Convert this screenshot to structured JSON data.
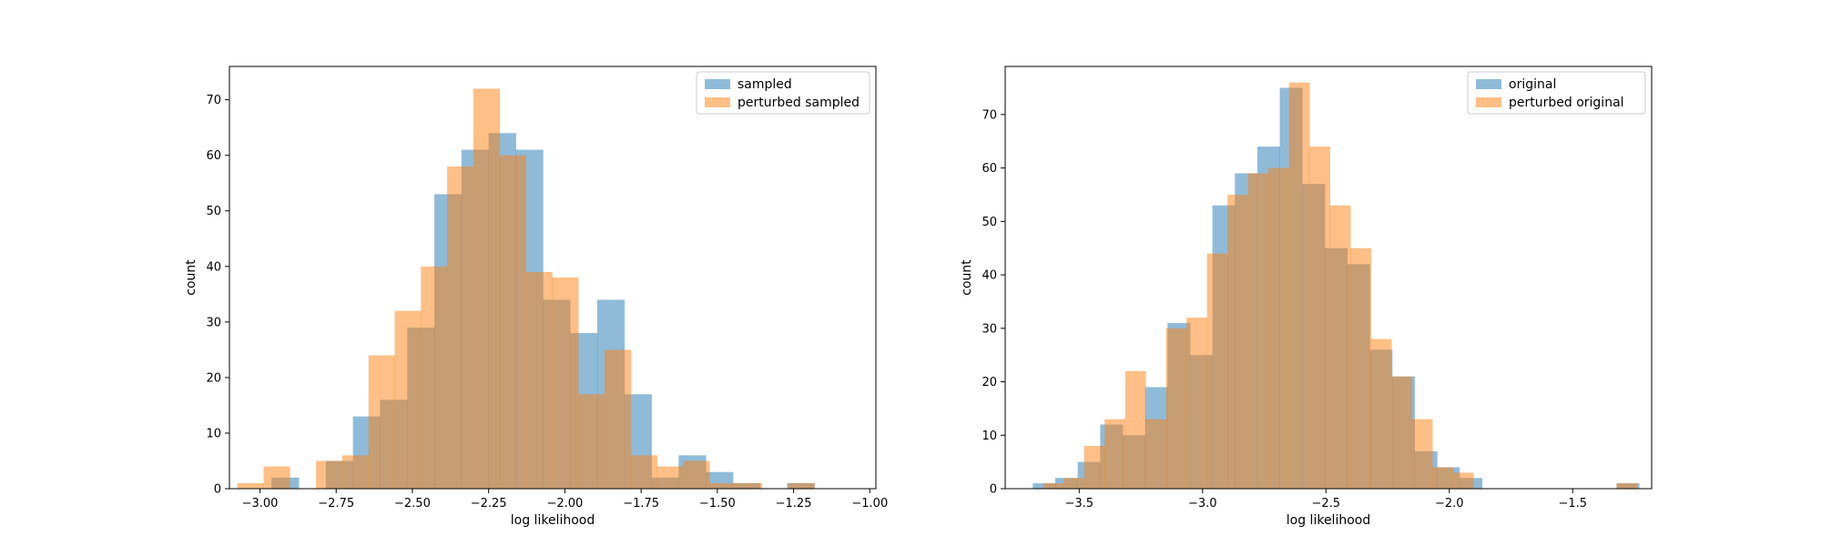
{
  "chart_data": [
    {
      "type": "bar",
      "title": "",
      "xlabel": "log likelihood",
      "ylabel": "count",
      "xlim": [
        -3.1,
        -0.98
      ],
      "ylim": [
        0,
        76
      ],
      "xticks": [
        -3.0,
        -2.75,
        -2.5,
        -2.25,
        -2.0,
        -1.75,
        -1.5,
        -1.25,
        -1.0
      ],
      "xtick_labels": [
        "−3.00",
        "−2.75",
        "−2.50",
        "−2.25",
        "−2.00",
        "−1.75",
        "−1.50",
        "−1.25",
        "−1.00"
      ],
      "yticks": [
        0,
        10,
        20,
        30,
        40,
        50,
        60,
        70
      ],
      "ytick_labels": [
        "0",
        "10",
        "20",
        "30",
        "40",
        "50",
        "60",
        "70"
      ],
      "grid": false,
      "legend_position": "upper-right",
      "series": [
        {
          "name": "sampled",
          "color": "#1f77b4",
          "edges": [
            -2.962,
            -2.873,
            -2.784,
            -2.695,
            -2.606,
            -2.517,
            -2.428,
            -2.339,
            -2.25,
            -2.161,
            -2.072,
            -1.983,
            -1.894,
            -1.805,
            -1.716,
            -1.627,
            -1.538,
            -1.449,
            -1.36,
            -1.271,
            -1.182,
            -1.093
          ],
          "counts": [
            2,
            0,
            5,
            13,
            16,
            29,
            53,
            61,
            64,
            61,
            34,
            28,
            34,
            17,
            2,
            6,
            3,
            1,
            0,
            1,
            0,
            1
          ]
        },
        {
          "name": "perturbed sampled",
          "color": "#ff7f0e",
          "edges": [
            -3.074,
            -2.988,
            -2.902,
            -2.816,
            -2.73,
            -2.644,
            -2.558,
            -2.472,
            -2.386,
            -2.3,
            -2.214,
            -2.128,
            -2.042,
            -1.956,
            -1.87,
            -1.784,
            -1.698,
            -1.612,
            -1.526,
            -1.44,
            -1.354,
            -1.268,
            -1.182
          ],
          "counts": [
            1,
            4,
            0,
            5,
            6,
            24,
            32,
            40,
            58,
            72,
            60,
            39,
            38,
            17,
            25,
            6,
            4,
            5,
            1,
            1,
            0,
            1
          ]
        }
      ]
    },
    {
      "type": "bar",
      "title": "",
      "xlabel": "log likelihood",
      "ylabel": "count",
      "xlim": [
        -3.8,
        -1.18
      ],
      "ylim": [
        0,
        79
      ],
      "xticks": [
        -3.5,
        -3.0,
        -2.5,
        -2.0,
        -1.5
      ],
      "xtick_labels": [
        "−3.5",
        "−3.0",
        "−2.5",
        "−2.0",
        "−1.5"
      ],
      "yticks": [
        0,
        10,
        20,
        30,
        40,
        50,
        60,
        70
      ],
      "ytick_labels": [
        "0",
        "10",
        "20",
        "30",
        "40",
        "50",
        "60",
        "70"
      ],
      "grid": false,
      "legend_position": "upper-right",
      "series": [
        {
          "name": "original",
          "color": "#1f77b4",
          "edges": [
            -3.688,
            -3.597,
            -3.506,
            -3.415,
            -3.324,
            -3.233,
            -3.142,
            -3.051,
            -2.96,
            -2.869,
            -2.778,
            -2.687,
            -2.596,
            -2.505,
            -2.414,
            -2.323,
            -2.232,
            -2.141,
            -2.05,
            -1.959,
            -1.868,
            -1.777,
            -1.686,
            -1.595,
            -1.504,
            -1.413,
            -1.322,
            -1.231
          ],
          "counts": [
            1,
            2,
            5,
            12,
            10,
            19,
            31,
            25,
            53,
            59,
            64,
            75,
            57,
            45,
            42,
            26,
            21,
            7,
            4,
            2,
            0,
            0,
            0,
            0,
            0,
            0,
            1
          ]
        },
        {
          "name": "perturbed original",
          "color": "#ff7f0e",
          "edges": [
            -3.646,
            -3.563,
            -3.48,
            -3.397,
            -3.314,
            -3.231,
            -3.148,
            -3.065,
            -2.982,
            -2.899,
            -2.816,
            -2.733,
            -2.65,
            -2.567,
            -2.484,
            -2.401,
            -2.318,
            -2.235,
            -2.152,
            -2.069,
            -1.986,
            -1.903,
            -1.82,
            -1.737,
            -1.654,
            -1.571,
            -1.488,
            -1.405,
            -1.322,
            -1.239
          ],
          "counts": [
            1,
            2,
            8,
            13,
            22,
            13,
            30,
            32,
            44,
            55,
            59,
            60,
            76,
            64,
            53,
            45,
            28,
            21,
            13,
            4,
            3,
            0,
            0,
            0,
            0,
            0,
            0,
            0,
            1
          ]
        }
      ]
    }
  ]
}
